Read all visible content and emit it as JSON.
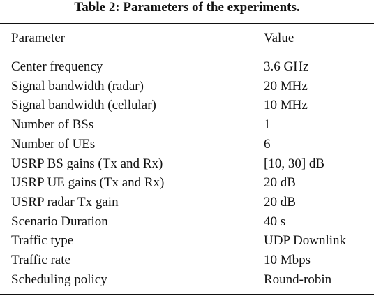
{
  "table": {
    "title": "Table 2: Parameters of the experiments.",
    "header": [
      "Parameter",
      "Value"
    ],
    "rows": [
      [
        "Center frequency",
        "3.6 GHz"
      ],
      [
        "Signal bandwidth (radar)",
        "20 MHz"
      ],
      [
        "Signal bandwidth (cellular)",
        "10 MHz"
      ],
      [
        "Number of BSs",
        "1"
      ],
      [
        "Number of UEs",
        "6"
      ],
      [
        "USRP BS gains (Tx and Rx)",
        "[10, 30] dB"
      ],
      [
        "USRP UE gains (Tx and Rx)",
        "20 dB"
      ],
      [
        "USRP radar Tx gain",
        "20 dB"
      ],
      [
        "Scenario Duration",
        "40 s"
      ],
      [
        "Traffic type",
        "UDP Downlink"
      ],
      [
        "Traffic rate",
        "10 Mbps"
      ],
      [
        "Scheduling policy",
        "Round-robin"
      ]
    ]
  }
}
